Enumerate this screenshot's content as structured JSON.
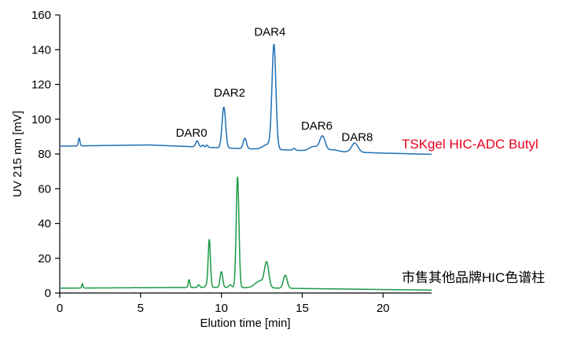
{
  "chart_data": {
    "type": "line",
    "xlabel": "Elution time [min]",
    "ylabel": "UV 215 nm [mV]",
    "xlim": [
      0,
      23
    ],
    "ylim": [
      0,
      160
    ],
    "x_ticks": [
      0,
      5,
      10,
      15,
      20
    ],
    "y_ticks": [
      0,
      20,
      40,
      60,
      80,
      100,
      120,
      140,
      160
    ],
    "grid": false,
    "legend": "none (series labelled at right end of each trace)",
    "series": [
      {
        "name": "TSKgel HIC-ADC Butyl",
        "color": "#1f6fb5",
        "baseline": {
          "x": [
            0,
            5.5,
            10,
            15,
            20,
            23
          ],
          "y": [
            84.5,
            85.2,
            83.5,
            82.0,
            80.5,
            79.8
          ]
        },
        "peaks": [
          {
            "x": 1.2,
            "height": 4.5,
            "width": 0.05
          },
          {
            "x": 8.5,
            "height": 3.5,
            "width": 0.09
          },
          {
            "x": 8.85,
            "height": 1.2,
            "width": 0.06
          },
          {
            "x": 9.1,
            "height": 1.3,
            "width": 0.06
          },
          {
            "x": 10.15,
            "height": 23.5,
            "width": 0.11
          },
          {
            "x": 11.45,
            "height": 6.0,
            "width": 0.1
          },
          {
            "x": 12.9,
            "height": 3.0,
            "width": 0.3
          },
          {
            "x": 13.25,
            "height": 59.0,
            "width": 0.12
          },
          {
            "x": 14.5,
            "height": 1.0,
            "width": 0.08
          },
          {
            "x": 15.7,
            "height": 2.5,
            "width": 0.25
          },
          {
            "x": 16.25,
            "height": 8.5,
            "width": 0.17
          },
          {
            "x": 16.9,
            "height": 1.0,
            "width": 0.3
          },
          {
            "x": 18.25,
            "height": 5.2,
            "width": 0.2
          }
        ]
      },
      {
        "name": "市售其他品牌HIC色谱柱",
        "color": "#1a9a45",
        "baseline": {
          "x": [
            0,
            10,
            15,
            20,
            23
          ],
          "y": [
            2.8,
            3.3,
            2.6,
            2.0,
            1.7
          ]
        },
        "peaks": [
          {
            "x": 1.4,
            "height": 2.5,
            "width": 0.04
          },
          {
            "x": 8.0,
            "height": 4.5,
            "width": 0.05
          },
          {
            "x": 8.6,
            "height": 1.5,
            "width": 0.06
          },
          {
            "x": 9.05,
            "height": 1.0,
            "width": 0.06
          },
          {
            "x": 9.25,
            "height": 27.5,
            "width": 0.07
          },
          {
            "x": 10.0,
            "height": 9.0,
            "width": 0.08
          },
          {
            "x": 10.55,
            "height": 1.5,
            "width": 0.08
          },
          {
            "x": 11.0,
            "height": 63.5,
            "width": 0.085
          },
          {
            "x": 12.4,
            "height": 4.0,
            "width": 0.3
          },
          {
            "x": 12.8,
            "height": 13.5,
            "width": 0.13
          },
          {
            "x": 13.95,
            "height": 7.5,
            "width": 0.12
          }
        ]
      }
    ],
    "annotations": [
      {
        "text": "DAR0",
        "x": 8.15,
        "y": 90
      },
      {
        "text": "DAR2",
        "x": 10.5,
        "y": 113
      },
      {
        "text": "DAR4",
        "x": 13.0,
        "y": 148
      },
      {
        "text": "DAR6",
        "x": 15.9,
        "y": 94
      },
      {
        "text": "DAR8",
        "x": 18.4,
        "y": 87.5
      }
    ]
  }
}
